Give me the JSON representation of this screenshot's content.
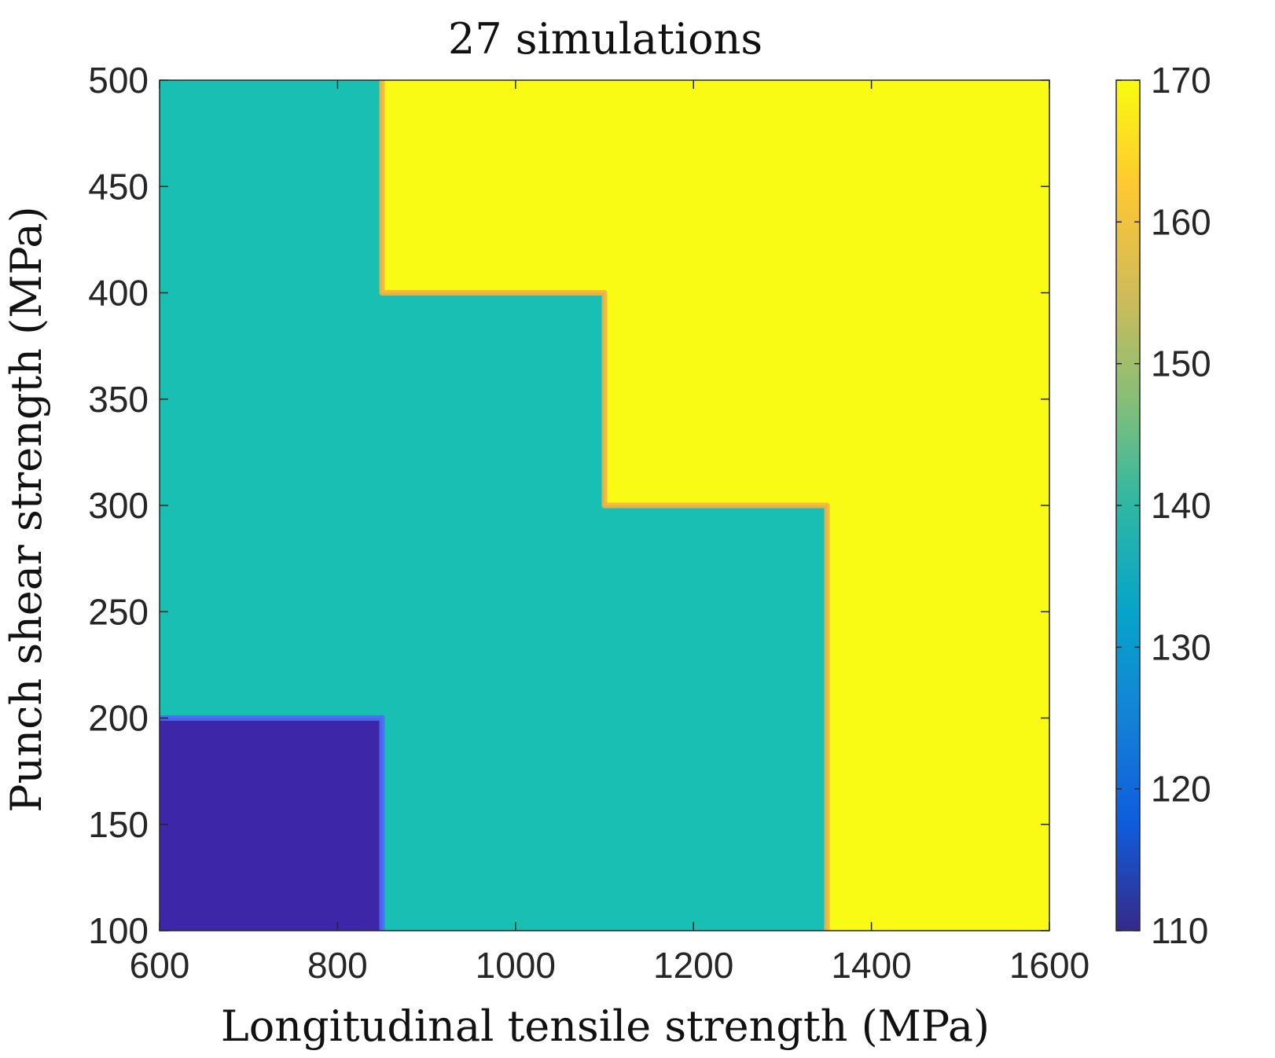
{
  "chart_data": {
    "type": "heatmap",
    "title": "27 simulations",
    "xlabel": "Longitudinal tensile strength (MPa)",
    "ylabel": "Punch shear strength (MPa)",
    "xlim": [
      600,
      1600
    ],
    "ylim": [
      100,
      500
    ],
    "x_ticks": [
      600,
      800,
      1000,
      1200,
      1400,
      1600
    ],
    "y_ticks": [
      100,
      150,
      200,
      250,
      300,
      350,
      400,
      450,
      500
    ],
    "colorbar": {
      "range": [
        110,
        170
      ],
      "ticks": [
        110,
        120,
        130,
        140,
        150,
        160,
        170
      ],
      "colormap": "parula"
    },
    "regions": [
      {
        "x": [
          600,
          850
        ],
        "y": [
          100,
          200
        ],
        "value": 110,
        "color": "#3e26a8"
      },
      {
        "x": [
          600,
          850
        ],
        "y": [
          200,
          500
        ],
        "value": 141,
        "color": "#1abfb4"
      },
      {
        "x": [
          850,
          1350
        ],
        "y": [
          100,
          300
        ],
        "value": 141,
        "color": "#1abfb4"
      },
      {
        "x": [
          850,
          1100
        ],
        "y": [
          300,
          400
        ],
        "value": 141,
        "color": "#1abfb4"
      },
      {
        "x": [
          850,
          1100
        ],
        "y": [
          400,
          500
        ],
        "value": 170,
        "color": "#f9fb15"
      },
      {
        "x": [
          1100,
          1600
        ],
        "y": [
          300,
          500
        ],
        "value": 170,
        "color": "#f9fb15"
      },
      {
        "x": [
          1350,
          1600
        ],
        "y": [
          100,
          300
        ],
        "value": 170,
        "color": "#f9fb15"
      }
    ],
    "boundaries": [
      {
        "points": [
          [
            600,
            200
          ],
          [
            850,
            200
          ],
          [
            850,
            100
          ]
        ],
        "color": "#4d6cf5"
      },
      {
        "points": [
          [
            850,
            500
          ],
          [
            850,
            400
          ],
          [
            1100,
            400
          ],
          [
            1100,
            300
          ],
          [
            1350,
            300
          ],
          [
            1350,
            100
          ]
        ],
        "color": "#f5b340"
      }
    ]
  }
}
